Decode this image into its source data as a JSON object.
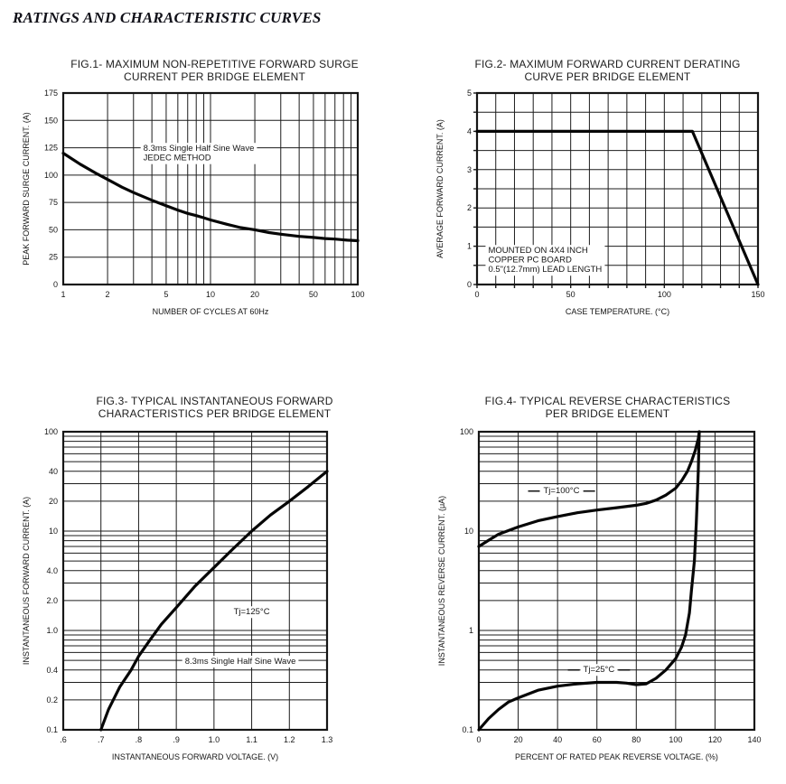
{
  "page": {
    "title": "RATINGS AND CHARACTERISTIC CURVES"
  },
  "colors": {
    "ink": "#161616",
    "grid": "#1c1c1c",
    "curve": "#060606",
    "background": "#ffffff"
  },
  "chart_data": [
    {
      "id": "fig1",
      "type": "line",
      "title_lines": [
        "FIG.1- MAXIMUM NON-REPETITIVE FORWARD SURGE",
        "CURRENT PER BRIDGE ELEMENT"
      ],
      "xlabel": "NUMBER OF CYCLES AT 60Hz",
      "ylabel": "PEAK FORWARD SURGE CURRENT. (A)",
      "x_axis": {
        "type": "log",
        "min": 1,
        "max": 100,
        "ticks": [
          {
            "v": 1,
            "label": "1"
          },
          {
            "v": 2,
            "label": "2"
          },
          {
            "v": 5,
            "label": "5"
          },
          {
            "v": 10,
            "label": "10"
          },
          {
            "v": 20,
            "label": "20"
          },
          {
            "v": 50,
            "label": "50"
          },
          {
            "v": 100,
            "label": "100"
          }
        ]
      },
      "y_axis": {
        "type": "linear",
        "min": 0,
        "max": 175,
        "grid_step": 25,
        "ticks": [
          {
            "v": 0,
            "label": "0"
          },
          {
            "v": 25,
            "label": "25"
          },
          {
            "v": 50,
            "label": "50"
          },
          {
            "v": 75,
            "label": "75"
          },
          {
            "v": 100,
            "label": "100"
          },
          {
            "v": 125,
            "label": "125"
          },
          {
            "v": 150,
            "label": "150"
          },
          {
            "v": 175,
            "label": "175"
          }
        ]
      },
      "series": [
        {
          "name": "surge current",
          "points": [
            [
              1,
              120
            ],
            [
              1.3,
              110
            ],
            [
              1.7,
              101
            ],
            [
              2,
              96
            ],
            [
              2.5,
              89
            ],
            [
              3,
              84
            ],
            [
              4,
              77
            ],
            [
              5,
              72
            ],
            [
              6,
              68
            ],
            [
              7,
              65
            ],
            [
              8,
              63
            ],
            [
              9,
              61
            ],
            [
              10,
              59
            ],
            [
              13,
              55
            ],
            [
              16,
              52
            ],
            [
              20,
              50
            ],
            [
              25,
              47.5
            ],
            [
              30,
              46
            ],
            [
              40,
              44
            ],
            [
              50,
              43
            ],
            [
              60,
              42
            ],
            [
              70,
              41.5
            ],
            [
              85,
              40.5
            ],
            [
              100,
              40
            ]
          ]
        }
      ],
      "annotations": [
        {
          "lines": [
            "8.3ms Single Half Sine Wave",
            "JEDEC METHOD"
          ],
          "x": 3.5,
          "y": 122,
          "anchor": "start",
          "line_height": 10.5
        }
      ]
    },
    {
      "id": "fig2",
      "type": "line",
      "title_lines": [
        "FIG.2- MAXIMUM FORWARD CURRENT DERATING",
        "CURVE PER BRIDGE ELEMENT"
      ],
      "xlabel": "CASE TEMPERATURE. (°C)",
      "ylabel": "AVERAGE FORWARD CURRENT. (A)",
      "x_axis": {
        "type": "linear",
        "min": 0,
        "max": 150,
        "grid_step": 10,
        "ticks": [
          {
            "v": 0,
            "label": "0"
          },
          {
            "v": 50,
            "label": "50"
          },
          {
            "v": 100,
            "label": "100"
          },
          {
            "v": 150,
            "label": "150"
          }
        ]
      },
      "y_axis": {
        "type": "linear",
        "min": 0,
        "max": 5,
        "grid_step": 0.5,
        "ticks": [
          {
            "v": 0,
            "label": "0"
          },
          {
            "v": 1,
            "label": "1"
          },
          {
            "v": 2,
            "label": "2"
          },
          {
            "v": 3,
            "label": "3"
          },
          {
            "v": 4,
            "label": "4"
          },
          {
            "v": 5,
            "label": "5"
          }
        ]
      },
      "series": [
        {
          "name": "derating",
          "points": [
            [
              0,
              4
            ],
            [
              115,
              4
            ],
            [
              150,
              0
            ]
          ]
        }
      ],
      "annotations": [
        {
          "lines": [
            "MOUNTED ON 4X4 INCH",
            "COPPER PC BOARD",
            "0.5\"(12.7mm) LEAD LENGTH"
          ],
          "x": 6,
          "y": 0.82,
          "anchor": "start",
          "line_height": 10.5
        }
      ]
    },
    {
      "id": "fig3",
      "type": "line",
      "title_lines": [
        "FIG.3- TYPICAL INSTANTANEOUS FORWARD",
        "CHARACTERISTICS PER BRIDGE ELEMENT"
      ],
      "xlabel": "INSTANTANEOUS FORWARD VOLTAGE. (V)",
      "ylabel": "INSTANTANEOUS FORWARD CURRENT. (A)",
      "x_axis": {
        "type": "linear",
        "min": 0.6,
        "max": 1.3,
        "grid_step": 0.1,
        "ticks": [
          {
            "v": 0.6,
            "label": ".6"
          },
          {
            "v": 0.7,
            "label": ".7"
          },
          {
            "v": 0.8,
            "label": ".8"
          },
          {
            "v": 0.9,
            "label": ".9"
          },
          {
            "v": 1.0,
            "label": "1.0"
          },
          {
            "v": 1.1,
            "label": "1.1"
          },
          {
            "v": 1.2,
            "label": "1.2"
          },
          {
            "v": 1.3,
            "label": "1.3"
          }
        ]
      },
      "y_axis": {
        "type": "log",
        "min": 0.1,
        "max": 100,
        "ticks": [
          {
            "v": 100,
            "label": "100"
          },
          {
            "v": 40,
            "label": "40"
          },
          {
            "v": 20,
            "label": "20"
          },
          {
            "v": 10,
            "label": "10"
          },
          {
            "v": 4,
            "label": "4.0"
          },
          {
            "v": 2,
            "label": "2.0"
          },
          {
            "v": 1,
            "label": "1.0"
          },
          {
            "v": 0.4,
            "label": "0.4"
          },
          {
            "v": 0.2,
            "label": "0.2"
          },
          {
            "v": 0.1,
            "label": "0.1"
          }
        ]
      },
      "series": [
        {
          "name": "Tj=125°C forward",
          "points": [
            [
              0.7,
              0.1
            ],
            [
              0.72,
              0.16
            ],
            [
              0.75,
              0.27
            ],
            [
              0.78,
              0.4
            ],
            [
              0.8,
              0.55
            ],
            [
              0.83,
              0.8
            ],
            [
              0.86,
              1.15
            ],
            [
              0.9,
              1.7
            ],
            [
              0.95,
              2.8
            ],
            [
              1.0,
              4.3
            ],
            [
              1.05,
              6.6
            ],
            [
              1.1,
              10
            ],
            [
              1.15,
              14.5
            ],
            [
              1.2,
              20
            ],
            [
              1.25,
              28
            ],
            [
              1.3,
              40
            ]
          ]
        }
      ],
      "annotations": [
        {
          "lines": [
            "Tj=125°C"
          ],
          "x": 1.1,
          "y": 1.45,
          "anchor": "middle"
        },
        {
          "lines": [
            "8.3ms Single Half Sine Wave"
          ],
          "x": 1.07,
          "y": 0.46,
          "anchor": "middle"
        }
      ]
    },
    {
      "id": "fig4",
      "type": "line",
      "title_lines": [
        "FIG.4- TYPICAL REVERSE CHARACTERISTICS",
        "PER BRIDGE ELEMENT"
      ],
      "xlabel": "PERCENT OF RATED PEAK REVERSE VOLTAGE. (%)",
      "ylabel": "INSTANTANEOUS REVERSE CURRENT. (μA)",
      "x_axis": {
        "type": "linear",
        "min": 0,
        "max": 140,
        "grid_step": 20,
        "ticks": [
          {
            "v": 0,
            "label": "0"
          },
          {
            "v": 20,
            "label": "20"
          },
          {
            "v": 40,
            "label": "40"
          },
          {
            "v": 60,
            "label": "60"
          },
          {
            "v": 80,
            "label": "80"
          },
          {
            "v": 100,
            "label": "100"
          },
          {
            "v": 120,
            "label": "120"
          },
          {
            "v": 140,
            "label": "140"
          }
        ]
      },
      "y_axis": {
        "type": "log",
        "min": 0.1,
        "max": 100,
        "ticks": [
          {
            "v": 100,
            "label": "100"
          },
          {
            "v": 10,
            "label": "10"
          },
          {
            "v": 1,
            "label": "1"
          },
          {
            "v": 0.1,
            "label": "0.1"
          }
        ]
      },
      "series": [
        {
          "name": "Tj=100°C",
          "points": [
            [
              0,
              7
            ],
            [
              5,
              8.1
            ],
            [
              10,
              9.3
            ],
            [
              20,
              11
            ],
            [
              30,
              12.7
            ],
            [
              40,
              14
            ],
            [
              50,
              15.3
            ],
            [
              60,
              16.3
            ],
            [
              70,
              17.2
            ],
            [
              80,
              18.2
            ],
            [
              85,
              19
            ],
            [
              90,
              20.5
            ],
            [
              95,
              23
            ],
            [
              100,
              27
            ],
            [
              103,
              32
            ],
            [
              106,
              40
            ],
            [
              108,
              50
            ],
            [
              110,
              65
            ],
            [
              111.5,
              85
            ],
            [
              112,
              100
            ]
          ]
        },
        {
          "name": "Tj=25°C",
          "points": [
            [
              0,
              0.1
            ],
            [
              5,
              0.13
            ],
            [
              10,
              0.16
            ],
            [
              15,
              0.19
            ],
            [
              20,
              0.21
            ],
            [
              30,
              0.25
            ],
            [
              40,
              0.275
            ],
            [
              50,
              0.29
            ],
            [
              60,
              0.3
            ],
            [
              70,
              0.3
            ],
            [
              75,
              0.295
            ],
            [
              80,
              0.285
            ],
            [
              85,
              0.29
            ],
            [
              90,
              0.33
            ],
            [
              95,
              0.4
            ],
            [
              100,
              0.52
            ],
            [
              103,
              0.68
            ],
            [
              105,
              0.9
            ],
            [
              107,
              1.5
            ],
            [
              108,
              2.5
            ],
            [
              109.5,
              5
            ],
            [
              110.5,
              12
            ],
            [
              111.5,
              40
            ],
            [
              112,
              100
            ]
          ]
        }
      ],
      "annotations": [
        {
          "lines": [
            "Tj=100°C"
          ],
          "x": 42,
          "y": 24,
          "anchor": "middle",
          "leader": true
        },
        {
          "lines": [
            "Tj=25°C"
          ],
          "x": 61,
          "y": 0.38,
          "anchor": "middle",
          "leader": true
        }
      ]
    }
  ]
}
